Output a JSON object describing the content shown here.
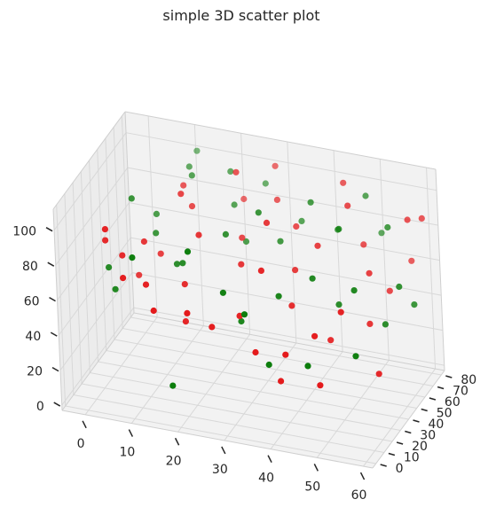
{
  "chart_data": {
    "type": "scatter",
    "projection": "3d",
    "title": "simple 3D scatter plot",
    "xlabel": "",
    "ylabel": "",
    "zlabel": "",
    "grid": true,
    "pane_color": "#f2f2f2",
    "grid_color": "#d8d8d8",
    "marker_alpha": 1.0,
    "xlim": [
      -5,
      62
    ],
    "ylim": [
      -4,
      84
    ],
    "zlim": [
      -3,
      112
    ],
    "x_ticks": [
      0,
      10,
      20,
      30,
      40,
      50,
      60
    ],
    "y_ticks": [
      0,
      10,
      20,
      30,
      40,
      50,
      60,
      70,
      80
    ],
    "z_ticks": [
      0,
      20,
      40,
      60,
      80,
      100
    ],
    "series": [
      {
        "color": "#e41a1c",
        "points": [
          [
            8,
            4,
            74
          ],
          [
            12,
            9,
            69
          ],
          [
            4,
            7,
            98
          ],
          [
            22,
            2,
            62
          ],
          [
            3,
            12,
            88
          ],
          [
            6,
            15,
            79
          ],
          [
            14,
            6,
            57
          ],
          [
            25,
            14,
            48
          ],
          [
            30,
            20,
            53
          ],
          [
            18,
            22,
            64
          ],
          [
            9,
            25,
            82
          ],
          [
            35,
            10,
            41
          ],
          [
            40,
            18,
            37
          ],
          [
            28,
            35,
            72
          ],
          [
            20,
            30,
            88
          ],
          [
            45,
            26,
            45
          ],
          [
            50,
            31,
            58
          ],
          [
            33,
            40,
            95
          ],
          [
            38,
            44,
            68
          ],
          [
            15,
            38,
            104
          ],
          [
            42,
            50,
            80
          ],
          [
            52,
            55,
            66
          ],
          [
            26,
            48,
            78
          ],
          [
            47,
            60,
            99
          ],
          [
            55,
            62,
            53
          ],
          [
            58,
            70,
            90
          ],
          [
            36,
            58,
            83
          ],
          [
            49,
            66,
            74
          ],
          [
            44,
            72,
            103
          ],
          [
            31,
            64,
            92
          ],
          [
            57,
            78,
            61
          ],
          [
            24,
            55,
            110
          ],
          [
            60,
            76,
            88
          ],
          [
            53,
            48,
            42
          ],
          [
            46,
            39,
            35
          ],
          [
            11,
            33,
            71
          ],
          [
            19,
            16,
            47
          ],
          [
            7,
            28,
            60
          ],
          [
            34,
            26,
            77
          ],
          [
            41,
            6,
            30
          ],
          [
            56,
            40,
            20
          ],
          [
            29,
            74,
            104
          ],
          [
            16,
            45,
            93
          ],
          [
            23,
            68,
            86
          ],
          [
            39,
            33,
            55
          ],
          [
            48,
            14,
            26
          ],
          [
            13,
            52,
            99
          ]
        ]
      },
      {
        "color": "#0c7d0c",
        "points": [
          [
            2,
            20,
            67
          ],
          [
            10,
            5,
            86
          ],
          [
            21,
            11,
            91
          ],
          [
            27,
            18,
            66
          ],
          [
            5,
            34,
            99
          ],
          [
            17,
            26,
            73
          ],
          [
            32,
            15,
            58
          ],
          [
            37,
            29,
            62
          ],
          [
            43,
            37,
            70
          ],
          [
            51,
            42,
            64
          ],
          [
            24,
            40,
            84
          ],
          [
            30,
            47,
            95
          ],
          [
            14,
            57,
            102
          ],
          [
            39,
            60,
            97
          ],
          [
            46,
            54,
            89
          ],
          [
            54,
            68,
            85
          ],
          [
            58,
            57,
            60
          ],
          [
            48,
            76,
            95
          ],
          [
            35,
            70,
            78
          ],
          [
            22,
            62,
            86
          ],
          [
            8,
            46,
            84
          ],
          [
            12,
            65,
            101
          ],
          [
            26,
            78,
            90
          ],
          [
            42,
            74,
            74
          ],
          [
            50,
            82,
            71
          ],
          [
            18,
            3,
            18
          ],
          [
            29,
            27,
            45
          ],
          [
            9,
            39,
            78
          ],
          [
            56,
            50,
            42
          ],
          [
            44,
            22,
            30
          ],
          [
            4,
            16,
            58
          ],
          [
            60,
            63,
            47
          ],
          [
            33,
            55,
            75
          ],
          [
            20,
            70,
            99
          ],
          [
            38,
            9,
            36
          ],
          [
            15,
            30,
            69
          ],
          [
            53,
            30,
            35
          ],
          [
            25,
            58,
            69
          ],
          [
            47,
            45,
            52
          ],
          [
            11,
            80,
            100
          ]
        ]
      }
    ]
  }
}
